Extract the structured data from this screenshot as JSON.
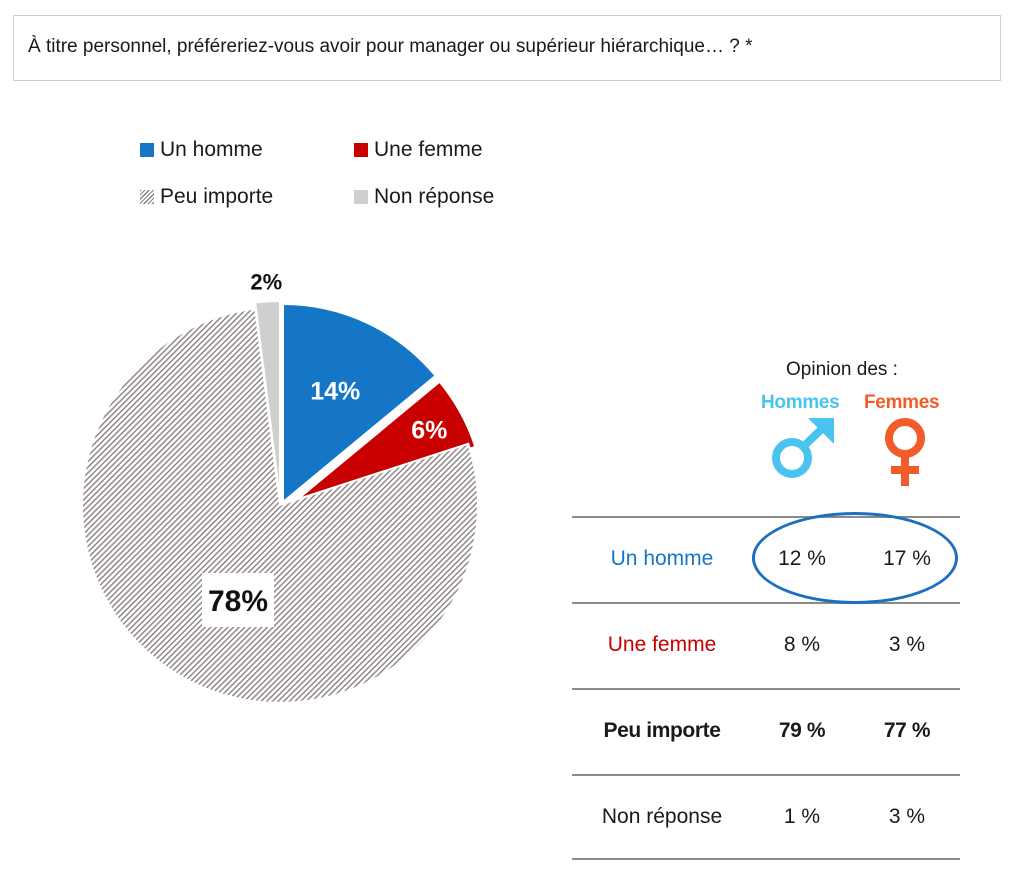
{
  "question": "À titre personnel, préféreriez-vous avoir pour manager ou supérieur hiérarchique… ? *",
  "legend": [
    {
      "label": "Un homme",
      "color": "#1576c8",
      "pattern": "solid"
    },
    {
      "label": "Une femme",
      "color": "#c80000",
      "pattern": "solid"
    },
    {
      "label": "Peu importe",
      "color": "#8a8080",
      "pattern": "hatched"
    },
    {
      "label": "Non réponse",
      "color": "#cfcfcf",
      "pattern": "solid"
    }
  ],
  "chart_data": {
    "type": "pie",
    "slices": [
      {
        "name": "Un homme",
        "value": 14,
        "label": "14%",
        "color": "#1576c8"
      },
      {
        "name": "Une femme",
        "value": 6,
        "label": "6%",
        "color": "#c80000"
      },
      {
        "name": "Peu importe",
        "value": 78,
        "label": "78%",
        "color": "#8a8080"
      },
      {
        "name": "Non réponse",
        "value": 2,
        "label": "2%",
        "color": "#cfcfcf"
      }
    ]
  },
  "opinion": {
    "title": "Opinion des :",
    "men_header": "Hommes",
    "women_header": "Femmes",
    "men_icon": "male-symbol-icon",
    "women_icon": "female-symbol-icon",
    "men_color": "#49c3f0",
    "women_color": "#f25c2a"
  },
  "table": {
    "rows": [
      {
        "label": "Un homme",
        "men": "12 %",
        "women": "17 %",
        "highlighted": true
      },
      {
        "label": "Une femme",
        "men": "8 %",
        "women": "3 %"
      },
      {
        "label": "Peu importe",
        "men": "79 %",
        "women": "77 %"
      },
      {
        "label": "Non réponse",
        "men": "1 %",
        "women": "3 %"
      }
    ]
  }
}
